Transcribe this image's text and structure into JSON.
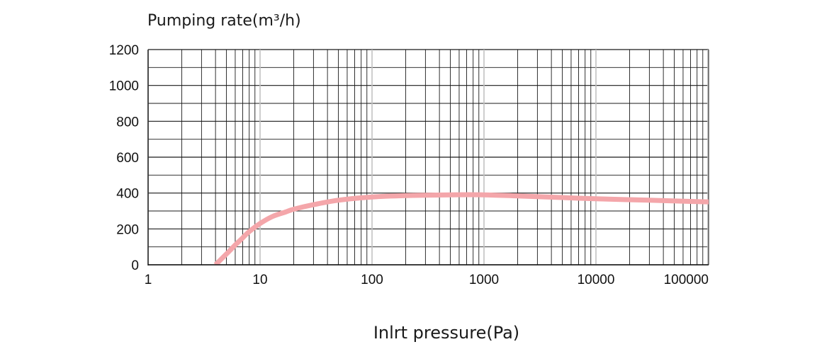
{
  "chart_data": {
    "type": "line",
    "title": "",
    "ylabel": "Pumping rate(m³/h)",
    "xlabel": "Inlrt pressure(Pa)",
    "x_scale": "log",
    "xlim": [
      1,
      150000
    ],
    "ylim": [
      0,
      1200
    ],
    "x_ticks": [
      1,
      10,
      100,
      1000,
      10000,
      100000
    ],
    "x_tick_labels": [
      "1",
      "10",
      "100",
      "1000",
      "10000",
      "100000"
    ],
    "y_ticks": [
      0,
      200,
      400,
      600,
      800,
      1000,
      1200
    ],
    "y_tick_labels": [
      "0",
      "200",
      "400",
      "600",
      "800",
      "1000",
      "1200"
    ],
    "grid": true,
    "series": [
      {
        "color": "#f4a6aa",
        "x": [
          4,
          5,
          6,
          7,
          8,
          10,
          13,
          17,
          20,
          30,
          50,
          100,
          200,
          500,
          1000,
          2000,
          5000,
          10000,
          30000,
          80000,
          150000
        ],
        "y": [
          0,
          60,
          110,
          150,
          185,
          230,
          270,
          295,
          310,
          335,
          360,
          378,
          386,
          390,
          390,
          384,
          375,
          368,
          360,
          352,
          348
        ]
      }
    ]
  }
}
